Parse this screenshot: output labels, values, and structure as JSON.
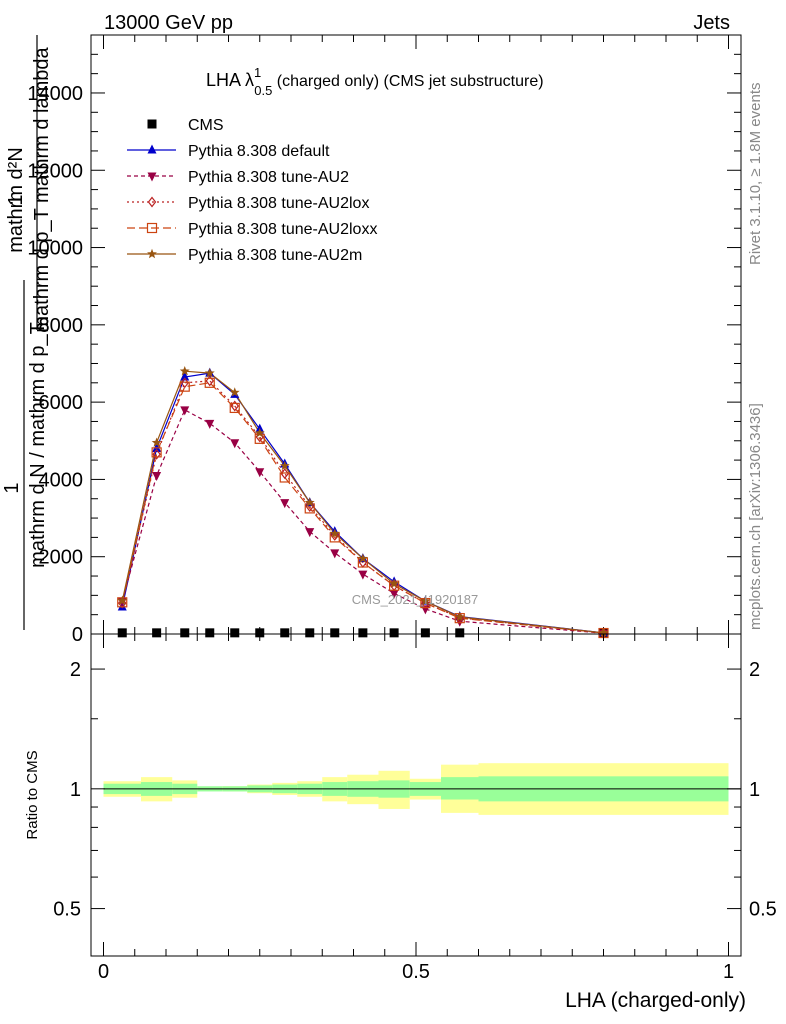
{
  "header": {
    "left": "13000 GeV pp",
    "right": "Jets"
  },
  "side_labels": {
    "rivet": "Rivet 3.1.10, ≥ 1.8M events",
    "mcplots": "mcplots.cern.ch [arXiv:1306.3436]"
  },
  "watermark": "CMS_2021_I1920187",
  "chart_data": [
    {
      "type": "line",
      "title": {
        "main": "LHA λ",
        "sup": "1",
        "sub": "0.5",
        "rest": " (charged only) (CMS jet substructure)"
      },
      "ylabel": {
        "numerator": "mathrm d²N",
        "denominator": "mathrm d p_T mathrm d lambda",
        "prefix_num": "1",
        "prefix_den": "mathrm d N / mathrm d p_T"
      },
      "ylim": [
        0,
        15500
      ],
      "xlim": [
        -0.02,
        1.02
      ],
      "yticks": [
        0,
        2000,
        4000,
        6000,
        8000,
        10000,
        12000,
        14000
      ],
      "ytick_labels": [
        "0",
        "2000",
        "4000",
        "6000",
        "8000",
        "10000",
        "12000",
        "14000"
      ],
      "legend_position": "top-left",
      "x": [
        0.03,
        0.085,
        0.13,
        0.17,
        0.21,
        0.25,
        0.29,
        0.33,
        0.37,
        0.415,
        0.465,
        0.515,
        0.57,
        0.8
      ],
      "series": [
        {
          "name": "CMS",
          "color": "#000000",
          "marker": "square",
          "dash": "none",
          "values": [
            30,
            30,
            30,
            30,
            30,
            30,
            30,
            30,
            30,
            30,
            30,
            30,
            30,
            30
          ]
        },
        {
          "name": "Pythia 8.308 default",
          "color": "#0000cc",
          "marker": "triangle-up",
          "dash": "none",
          "values": [
            700,
            4800,
            6650,
            6750,
            6200,
            5300,
            4400,
            3400,
            2650,
            1950,
            1350,
            850,
            450,
            30
          ]
        },
        {
          "name": "Pythia 8.308 tune-AU2",
          "color": "#990044",
          "marker": "triangle-down",
          "dash": "4,3",
          "values": [
            850,
            4100,
            5800,
            5450,
            4950,
            4200,
            3400,
            2650,
            2100,
            1550,
            1050,
            650,
            330,
            20
          ]
        },
        {
          "name": "Pythia 8.308 tune-AU2lox",
          "color": "#bb2222",
          "marker": "diamond",
          "dash": "2,3",
          "values": [
            800,
            4650,
            6500,
            6550,
            5900,
            5100,
            4150,
            3300,
            2550,
            1850,
            1250,
            800,
            420,
            25
          ]
        },
        {
          "name": "Pythia 8.308 tune-AU2loxx",
          "color": "#cc4411",
          "marker": "square-open",
          "dash": "8,4",
          "values": [
            820,
            4700,
            6400,
            6500,
            5850,
            5050,
            4050,
            3250,
            2500,
            1850,
            1250,
            800,
            410,
            25
          ]
        },
        {
          "name": "Pythia 8.308 tune-AU2m",
          "color": "#995511",
          "marker": "star",
          "dash": "none",
          "values": [
            860,
            4950,
            6800,
            6750,
            6250,
            5200,
            4350,
            3400,
            2600,
            1950,
            1300,
            850,
            440,
            30
          ]
        }
      ]
    },
    {
      "type": "area",
      "ylabel": "Ratio to CMS",
      "xlabel": "LHA (charged-only)",
      "ylim": [
        0.38,
        2.45
      ],
      "yscale": "log",
      "yticks": [
        0.5,
        1,
        2
      ],
      "ytick_labels": [
        "0.5",
        "1",
        "2"
      ],
      "xticks": [
        0,
        0.5,
        1
      ],
      "xtick_labels": [
        "0",
        "0.5",
        "1"
      ],
      "bins": [
        0,
        0.06,
        0.11,
        0.15,
        0.19,
        0.23,
        0.27,
        0.31,
        0.35,
        0.39,
        0.44,
        0.49,
        0.54,
        0.6,
        1.0
      ],
      "stat_band": {
        "color": "#99ff99",
        "lo": [
          0.97,
          0.96,
          0.97,
          0.985,
          0.985,
          0.98,
          0.975,
          0.97,
          0.96,
          0.955,
          0.95,
          0.96,
          0.94,
          0.93
        ],
        "hi": [
          1.03,
          1.04,
          1.03,
          1.015,
          1.015,
          1.02,
          1.025,
          1.03,
          1.04,
          1.045,
          1.05,
          1.04,
          1.07,
          1.075
        ]
      },
      "total_band": {
        "color": "#ffff99",
        "lo": [
          0.955,
          0.93,
          0.95,
          0.99,
          0.985,
          0.975,
          0.965,
          0.955,
          0.93,
          0.915,
          0.89,
          0.94,
          0.87,
          0.86
        ],
        "hi": [
          1.045,
          1.07,
          1.05,
          1.01,
          1.015,
          1.025,
          1.035,
          1.045,
          1.07,
          1.085,
          1.11,
          1.06,
          1.15,
          1.16
        ]
      }
    }
  ]
}
